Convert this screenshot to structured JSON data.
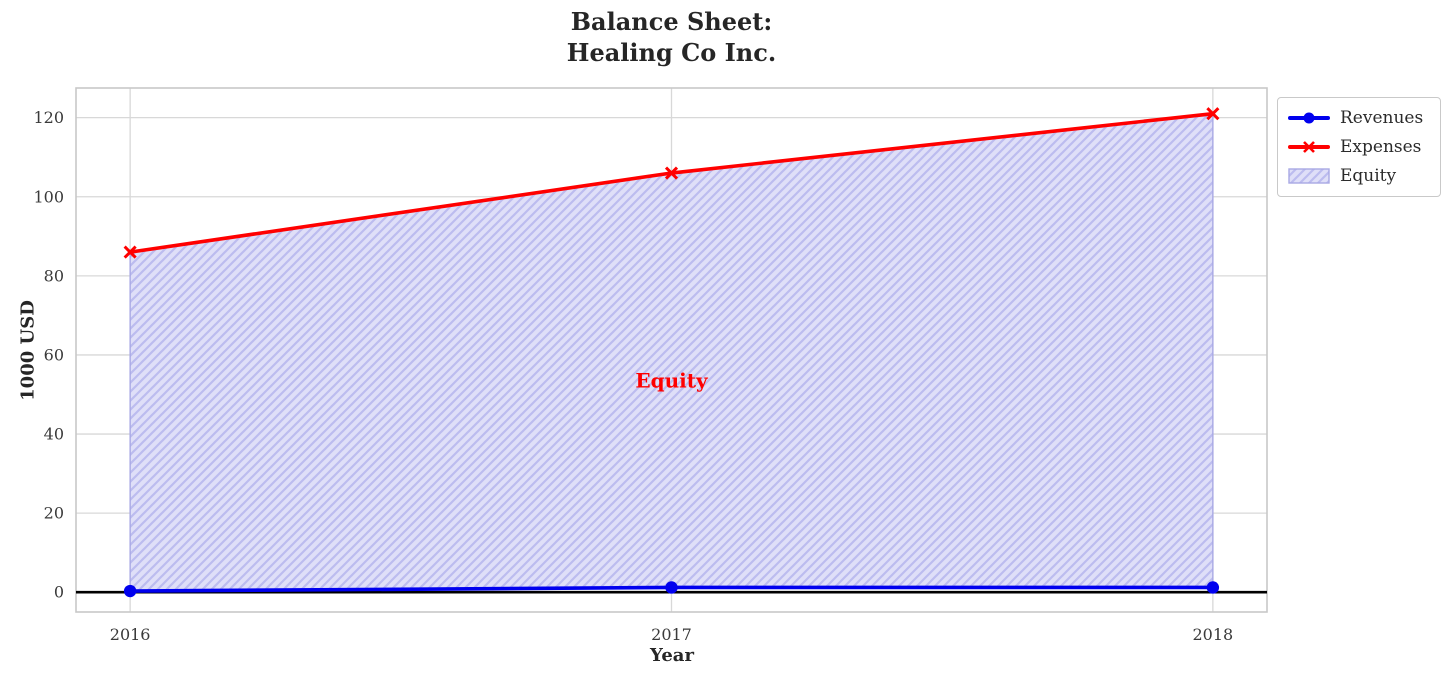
{
  "title": {
    "line1": "Balance Sheet:",
    "line2": "Healing Co Inc."
  },
  "chart_data": {
    "type": "line",
    "title": "Balance Sheet:\nHealing Co Inc.",
    "x": [
      2016,
      2017,
      2018
    ],
    "series": [
      {
        "name": "Revenues",
        "values": [
          0.3,
          1.2,
          1.2
        ],
        "color": "#0000ee",
        "marker": "circle"
      },
      {
        "name": "Expenses",
        "values": [
          86,
          106,
          121
        ],
        "color": "#ff0000",
        "marker": "x"
      }
    ],
    "fill_between": {
      "name": "Equity",
      "lower_series": "Revenues",
      "upper_series": "Expenses",
      "fill_color": "#dfdff8",
      "hatch_color": "#bcbcef",
      "edge_color": "#a9a9e4",
      "hatch": "/"
    },
    "annotation": {
      "text": "Equity",
      "x": 2017,
      "y": 53.5,
      "color": "#ff0000"
    },
    "xlabel": "Year",
    "ylabel": "1000 USD",
    "xticks": [
      2016,
      2017,
      2018
    ],
    "xtick_labels": [
      "2016",
      "2017",
      "2018"
    ],
    "yticks": [
      0,
      20,
      40,
      60,
      80,
      100,
      120
    ],
    "ytick_labels": [
      "0",
      "20",
      "40",
      "60",
      "80",
      "100",
      "120"
    ],
    "xlim": [
      2015.9,
      2018.1
    ],
    "ylim": [
      -5,
      127.5
    ],
    "grid": true,
    "grid_color": "#d8d8d8",
    "spine_color": "#c8c8c8",
    "tick_label_color": "#3a3a3a",
    "zero_line": {
      "y": 0,
      "color": "#000000"
    },
    "legend": {
      "position": "outside-upper-right",
      "entries": [
        "Revenues",
        "Expenses",
        "Equity"
      ]
    }
  }
}
